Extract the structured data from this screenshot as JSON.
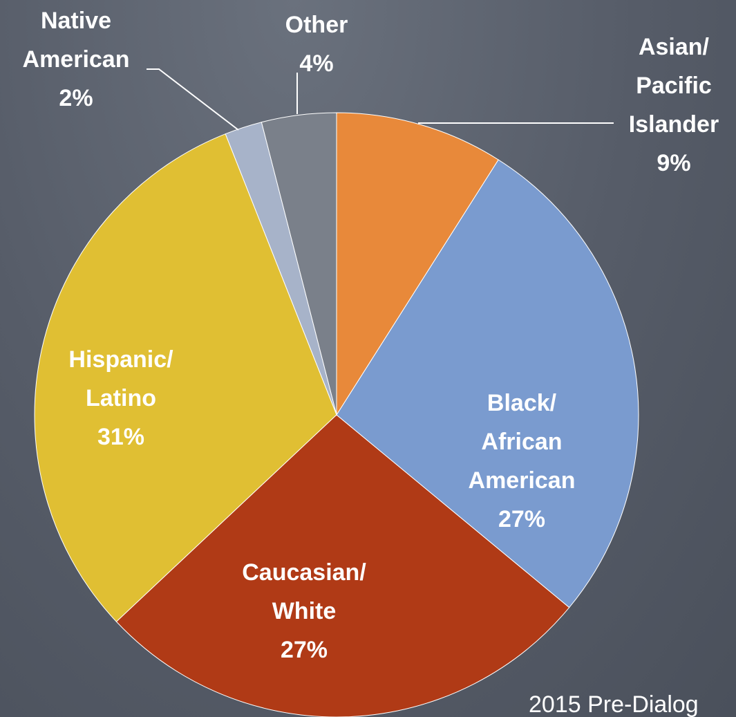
{
  "chart_data": {
    "type": "pie",
    "categories": [
      "Asian/ Pacific Islander",
      "Black/ African American",
      "Caucasian/ White",
      "Hispanic/ Latino",
      "Native American",
      "Other"
    ],
    "values": [
      9,
      27,
      27,
      31,
      2,
      4
    ],
    "value_labels": [
      "9%",
      "27%",
      "27%",
      "31%",
      "2%",
      "4%"
    ],
    "colors": [
      "#e8893a",
      "#7a9bcf",
      "#b03a16",
      "#e0bf33",
      "#a7b3c9",
      "#7a808a"
    ],
    "source": "2015 Pre-Dialog"
  }
}
